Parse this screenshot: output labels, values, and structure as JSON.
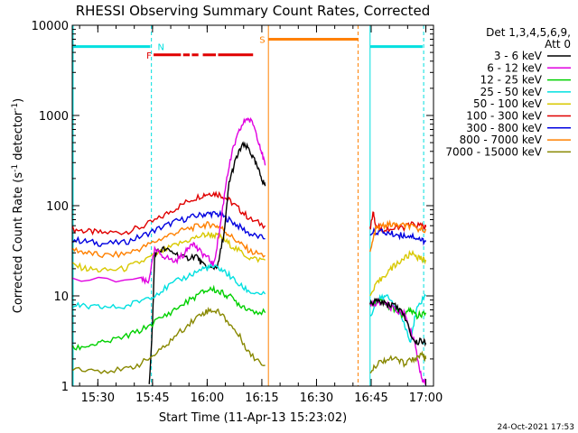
{
  "chart_data": {
    "type": "line",
    "title": "RHESSI Observing Summary Count Rates, Corrected",
    "xlabel": "Start Time (11-Apr-13 15:23:02)",
    "ylabel": "Corrected Count Rate (s⁻¹ detector⁻¹)",
    "ylabel_parts": {
      "main": "Corrected Count Rate (s",
      "sup1": "-1",
      "mid": " detector",
      "sup2": "-1",
      "end": ")"
    },
    "yscale": "log",
    "ylim": [
      1,
      10000
    ],
    "xlim": [
      15.383,
      17.035
    ],
    "y_ticks": [
      {
        "v": 1,
        "label": "1"
      },
      {
        "v": 10,
        "label": "10"
      },
      {
        "v": 100,
        "label": "100"
      },
      {
        "v": 1000,
        "label": "1000"
      },
      {
        "v": 10000,
        "label": "10000"
      }
    ],
    "x_ticks": [
      {
        "v": 15.5,
        "label": "15:30"
      },
      {
        "v": 15.75,
        "label": "15:45"
      },
      {
        "v": 16.0,
        "label": "16:00"
      },
      {
        "v": 16.25,
        "label": "16:15"
      },
      {
        "v": 16.5,
        "label": "16:30"
      },
      {
        "v": 16.75,
        "label": "16:45"
      },
      {
        "v": 17.0,
        "label": "17:00"
      }
    ],
    "legend_header": [
      "Det 1,3,4,5,6,9,",
      "Att 0"
    ],
    "timestamp": "24-Oct-2021 17:53",
    "series": [
      {
        "name": "3 - 6 keV",
        "color": "#000000"
      },
      {
        "name": "6 - 12 keV",
        "color": "#e000e0"
      },
      {
        "name": "12 - 25 keV",
        "color": "#00d000"
      },
      {
        "name": "25 - 50 keV",
        "color": "#00e0e0"
      },
      {
        "name": "50 - 100 keV",
        "color": "#d8c800"
      },
      {
        "name": "100 - 300 keV",
        "color": "#e00000"
      },
      {
        "name": "300 - 800 keV",
        "color": "#0000e0"
      },
      {
        "name": "800 - 7000 keV",
        "color": "#ff8000"
      },
      {
        "name": "7000 - 15000 keV",
        "color": "#888800"
      }
    ],
    "segments": [
      {
        "series": "100 - 300 keV",
        "points": [
          [
            15.385,
            55
          ],
          [
            15.45,
            52
          ],
          [
            15.52,
            50
          ],
          [
            15.62,
            51
          ],
          [
            15.7,
            58
          ],
          [
            15.78,
            72
          ],
          [
            15.85,
            92
          ],
          [
            15.92,
            115
          ],
          [
            15.98,
            132
          ],
          [
            16.02,
            138
          ],
          [
            16.06,
            133
          ],
          [
            16.1,
            115
          ],
          [
            16.15,
            90
          ],
          [
            16.2,
            70
          ],
          [
            16.265,
            60
          ]
        ]
      },
      {
        "series": "300 - 800 keV",
        "points": [
          [
            15.385,
            42
          ],
          [
            15.45,
            40
          ],
          [
            15.52,
            38
          ],
          [
            15.62,
            39
          ],
          [
            15.7,
            46
          ],
          [
            15.78,
            56
          ],
          [
            15.85,
            66
          ],
          [
            15.92,
            74
          ],
          [
            15.98,
            80
          ],
          [
            16.02,
            82
          ],
          [
            16.06,
            79
          ],
          [
            16.1,
            70
          ],
          [
            16.15,
            58
          ],
          [
            16.2,
            48
          ],
          [
            16.265,
            43
          ]
        ]
      },
      {
        "series": "800 - 7000 keV",
        "points": [
          [
            15.385,
            33
          ],
          [
            15.45,
            30
          ],
          [
            15.52,
            28
          ],
          [
            15.62,
            29
          ],
          [
            15.7,
            34
          ],
          [
            15.78,
            42
          ],
          [
            15.85,
            50
          ],
          [
            15.92,
            56
          ],
          [
            15.98,
            61
          ],
          [
            16.02,
            62
          ],
          [
            16.06,
            58
          ],
          [
            16.1,
            48
          ],
          [
            16.15,
            38
          ],
          [
            16.2,
            31
          ],
          [
            16.265,
            28
          ]
        ]
      },
      {
        "series": "50 - 100 keV",
        "points": [
          [
            15.385,
            22
          ],
          [
            15.45,
            20
          ],
          [
            15.52,
            19
          ],
          [
            15.62,
            20
          ],
          [
            15.7,
            24
          ],
          [
            15.78,
            30
          ],
          [
            15.85,
            36
          ],
          [
            15.92,
            42
          ],
          [
            15.98,
            47
          ],
          [
            16.02,
            48
          ],
          [
            16.06,
            45
          ],
          [
            16.1,
            38
          ],
          [
            16.15,
            31
          ],
          [
            16.2,
            26
          ],
          [
            16.265,
            25
          ]
        ]
      },
      {
        "series": "3 - 6 keV",
        "points": [
          [
            15.735,
            1
          ],
          [
            15.75,
            5
          ],
          [
            15.76,
            30
          ],
          [
            15.8,
            33
          ],
          [
            15.85,
            30
          ],
          [
            15.9,
            26
          ],
          [
            15.95,
            28
          ],
          [
            15.98,
            22
          ],
          [
            16.02,
            20
          ],
          [
            16.05,
            22
          ],
          [
            16.08,
            55
          ],
          [
            16.1,
            180
          ],
          [
            16.13,
            320
          ],
          [
            16.16,
            470
          ],
          [
            16.19,
            430
          ],
          [
            16.22,
            300
          ],
          [
            16.25,
            200
          ],
          [
            16.265,
            165
          ]
        ]
      },
      {
        "series": "6 - 12 keV",
        "points": [
          [
            15.385,
            15
          ],
          [
            15.7,
            15
          ],
          [
            15.73,
            14
          ],
          [
            15.76,
            32
          ],
          [
            15.8,
            28
          ],
          [
            15.85,
            24
          ],
          [
            15.9,
            30
          ],
          [
            15.93,
            40
          ],
          [
            15.96,
            32
          ],
          [
            16.0,
            27
          ],
          [
            16.03,
            22
          ],
          [
            16.06,
            60
          ],
          [
            16.09,
            210
          ],
          [
            16.12,
            440
          ],
          [
            16.15,
            700
          ],
          [
            16.18,
            940
          ],
          [
            16.21,
            820
          ],
          [
            16.24,
            480
          ],
          [
            16.265,
            280
          ]
        ]
      },
      {
        "series": "25 - 50 keV",
        "points": [
          [
            15.385,
            8
          ],
          [
            15.45,
            7.5
          ],
          [
            15.52,
            7.5
          ],
          [
            15.62,
            7.5
          ],
          [
            15.7,
            9
          ],
          [
            15.78,
            11
          ],
          [
            15.85,
            14
          ],
          [
            15.92,
            17
          ],
          [
            15.98,
            20
          ],
          [
            16.02,
            21
          ],
          [
            16.06,
            20
          ],
          [
            16.1,
            17
          ],
          [
            16.15,
            13
          ],
          [
            16.2,
            11
          ],
          [
            16.265,
            10.5
          ]
        ]
      },
      {
        "series": "12 - 25 keV",
        "points": [
          [
            15.385,
            2.6
          ],
          [
            15.45,
            2.8
          ],
          [
            15.52,
            3.0
          ],
          [
            15.62,
            3.5
          ],
          [
            15.7,
            4.2
          ],
          [
            15.78,
            5.5
          ],
          [
            15.85,
            7
          ],
          [
            15.92,
            9
          ],
          [
            15.98,
            11
          ],
          [
            16.02,
            12
          ],
          [
            16.06,
            11
          ],
          [
            16.1,
            10
          ],
          [
            16.15,
            8
          ],
          [
            16.2,
            7
          ],
          [
            16.265,
            6.5
          ]
        ]
      },
      {
        "series": "7000 - 15000 keV",
        "points": [
          [
            15.385,
            1.6
          ],
          [
            15.5,
            1.5
          ],
          [
            15.62,
            1.5
          ],
          [
            15.7,
            1.8
          ],
          [
            15.78,
            2.4
          ],
          [
            15.85,
            3.5
          ],
          [
            15.92,
            5
          ],
          [
            15.98,
            6.5
          ],
          [
            16.02,
            7
          ],
          [
            16.06,
            6.5
          ],
          [
            16.1,
            5
          ],
          [
            16.15,
            3.5
          ],
          [
            16.2,
            2.2
          ],
          [
            16.265,
            1.7
          ]
        ]
      },
      {
        "series": "100 - 300 keV",
        "points": [
          [
            16.745,
            55
          ],
          [
            16.76,
            90
          ],
          [
            16.77,
            60
          ],
          [
            16.8,
            55
          ],
          [
            16.85,
            55
          ],
          [
            16.9,
            58
          ],
          [
            16.94,
            62
          ],
          [
            16.98,
            60
          ],
          [
            17.0,
            58
          ]
        ]
      },
      {
        "series": "300 - 800 keV",
        "points": [
          [
            16.745,
            50
          ],
          [
            16.78,
            52
          ],
          [
            16.82,
            50
          ],
          [
            16.86,
            48
          ],
          [
            16.9,
            47
          ],
          [
            16.94,
            46
          ],
          [
            16.98,
            42
          ],
          [
            17.0,
            40
          ]
        ]
      },
      {
        "series": "800 - 7000 keV",
        "points": [
          [
            16.745,
            30
          ],
          [
            16.77,
            55
          ],
          [
            16.8,
            60
          ],
          [
            16.84,
            62
          ],
          [
            16.88,
            60
          ],
          [
            16.92,
            60
          ],
          [
            16.96,
            55
          ],
          [
            17.0,
            55
          ]
        ]
      },
      {
        "series": "50 - 100 keV",
        "points": [
          [
            16.745,
            10
          ],
          [
            16.78,
            14
          ],
          [
            16.82,
            18
          ],
          [
            16.86,
            22
          ],
          [
            16.9,
            26
          ],
          [
            16.94,
            30
          ],
          [
            16.97,
            26
          ],
          [
            17.0,
            25
          ]
        ]
      },
      {
        "series": "25 - 50 keV",
        "points": [
          [
            16.745,
            6
          ],
          [
            16.78,
            9
          ],
          [
            16.82,
            10
          ],
          [
            16.86,
            8
          ],
          [
            16.9,
            5
          ],
          [
            16.93,
            3
          ],
          [
            16.96,
            8
          ],
          [
            17.0,
            10
          ]
        ]
      },
      {
        "series": "12 - 25 keV",
        "points": [
          [
            16.745,
            8
          ],
          [
            16.78,
            9
          ],
          [
            16.82,
            8
          ],
          [
            16.86,
            7
          ],
          [
            16.9,
            6
          ],
          [
            16.93,
            7
          ],
          [
            16.96,
            6
          ],
          [
            17.0,
            6.5
          ]
        ]
      },
      {
        "series": "6 - 12 keV",
        "points": [
          [
            16.745,
            8
          ],
          [
            16.78,
            8.5
          ],
          [
            16.82,
            8
          ],
          [
            16.86,
            7
          ],
          [
            16.9,
            6.5
          ],
          [
            16.95,
            3
          ],
          [
            16.98,
            1.2
          ],
          [
            17.0,
            1.1
          ]
        ]
      },
      {
        "series": "3 - 6 keV",
        "points": [
          [
            16.745,
            8
          ],
          [
            16.78,
            9
          ],
          [
            16.82,
            8
          ],
          [
            16.86,
            8
          ],
          [
            16.9,
            6
          ],
          [
            16.95,
            3
          ],
          [
            16.98,
            3.2
          ],
          [
            17.0,
            3.0
          ]
        ]
      },
      {
        "series": "7000 - 15000 keV",
        "points": [
          [
            16.745,
            1.5
          ],
          [
            16.78,
            1.8
          ],
          [
            16.82,
            2.0
          ],
          [
            16.86,
            2.0
          ],
          [
            16.9,
            1.8
          ],
          [
            16.94,
            2.0
          ],
          [
            16.98,
            2.2
          ],
          [
            17.0,
            2.0
          ]
        ]
      }
    ],
    "flags": [
      {
        "label": "N",
        "color": "#00e0e0",
        "level": 5800,
        "x": [
          15.383,
          15.74
        ],
        "vlines": [
          15.745,
          16.99
        ],
        "dashed": true
      },
      {
        "label": "N",
        "color": "#00e0e0",
        "level": 5800,
        "x": [
          16.745,
          16.985
        ]
      },
      {
        "label": "S",
        "color": "#ff8000",
        "level": 7000,
        "x": [
          16.28,
          16.69
        ],
        "vlines": [
          16.28,
          16.69
        ]
      },
      {
        "label": "F",
        "color": "#e00000",
        "level": 4700,
        "x": [
          15.755,
          16.21
        ],
        "dashes": [
          [
            15.755,
            15.88
          ],
          [
            15.89,
            15.92
          ],
          [
            15.93,
            15.96
          ],
          [
            15.98,
            16.04
          ],
          [
            16.05,
            16.21
          ]
        ]
      }
    ]
  }
}
